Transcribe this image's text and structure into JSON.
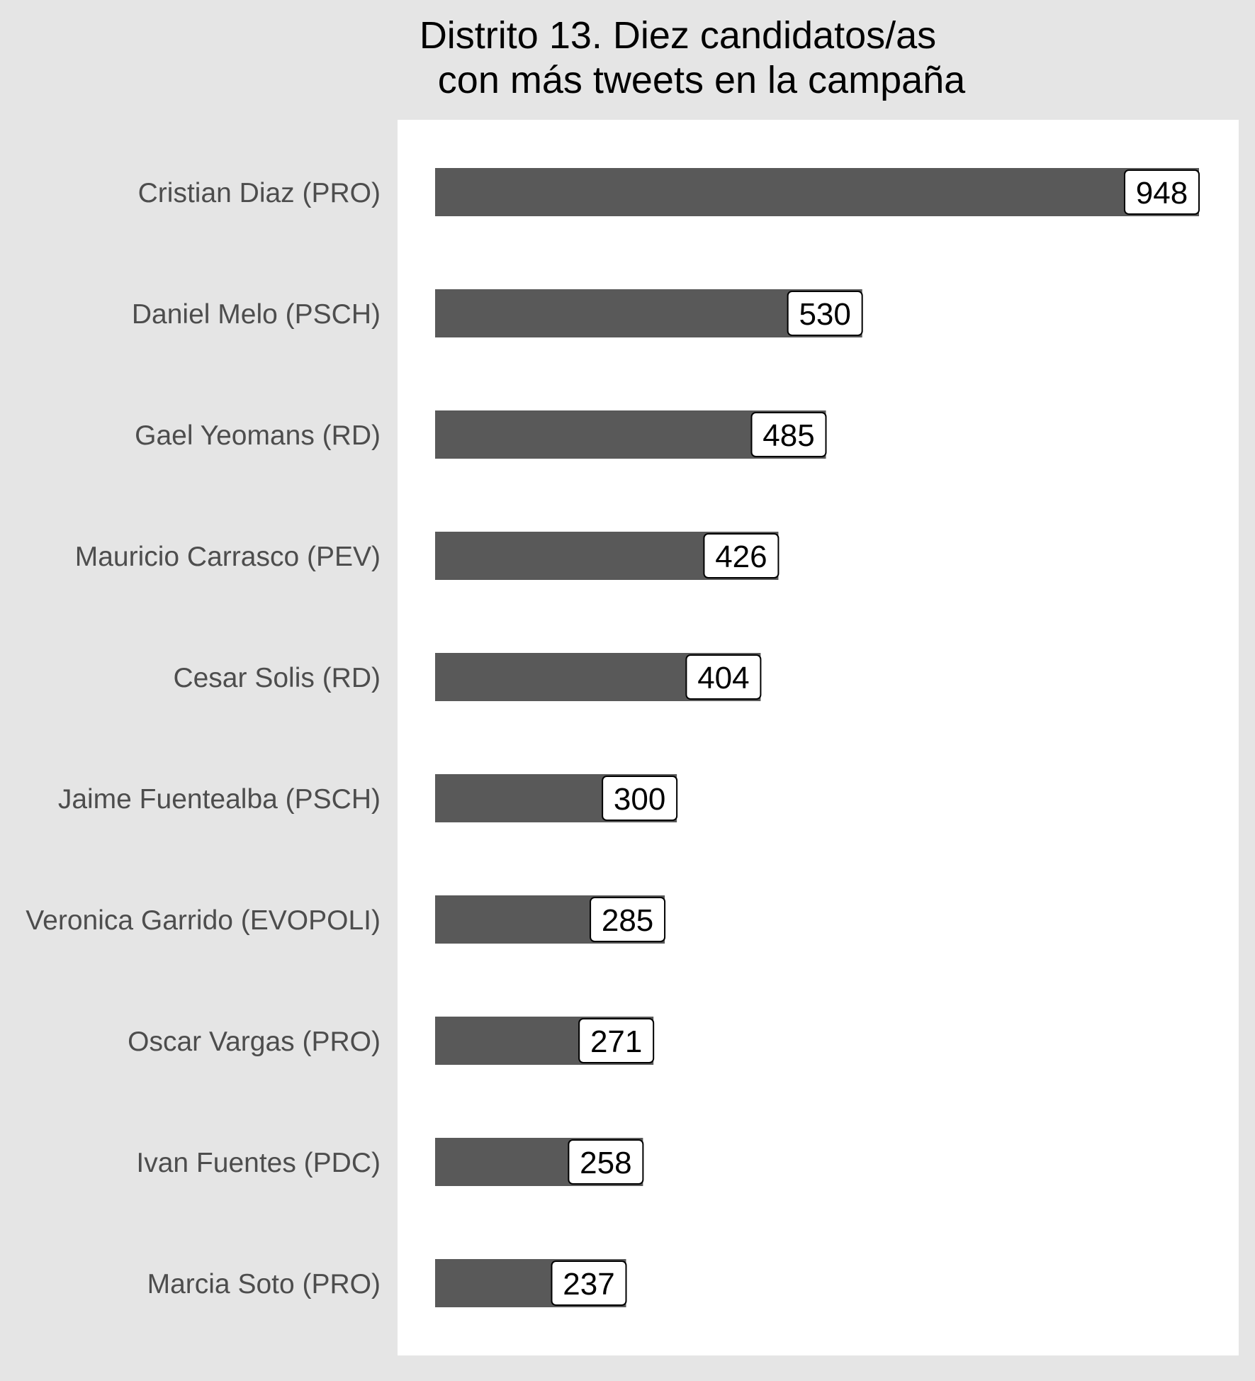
{
  "chart_data": {
    "type": "bar",
    "orientation": "horizontal",
    "title": [
      "Distrito 13. Diez candidatos/as",
      "con más tweets en la campaña"
    ],
    "xlabel": "",
    "ylabel": "",
    "categories": [
      "Cristian Diaz (PRO)",
      "Daniel Melo (PSCH)",
      "Gael Yeomans (RD)",
      "Mauricio Carrasco (PEV)",
      "Cesar Solis (RD)",
      "Jaime Fuentealba (PSCH)",
      "Veronica Garrido (EVOPOLI)",
      "Oscar Vargas (PRO)",
      "Ivan Fuentes (PDC)",
      "Marcia Soto (PRO)"
    ],
    "values": [
      948,
      530,
      485,
      426,
      404,
      300,
      285,
      271,
      258,
      237
    ],
    "xlim": [
      0,
      948
    ],
    "grid": false,
    "legend": "none",
    "data_labels": true,
    "colors": {
      "background": "#e5e5e5",
      "panel": "#ffffff",
      "bar": "#595959",
      "label_box": "#ffffff",
      "label_border": "#000000",
      "category_text": "#4d4d4d",
      "title_text": "#000000"
    }
  }
}
